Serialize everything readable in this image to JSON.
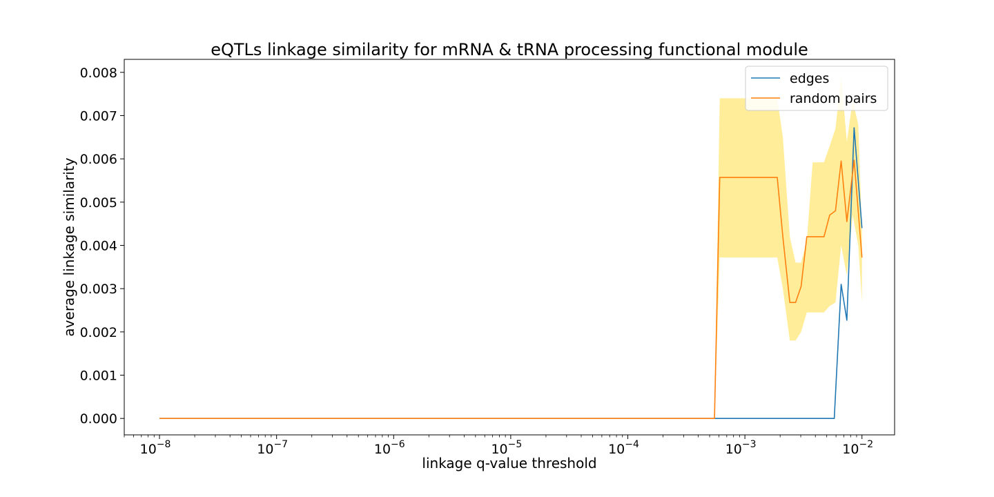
{
  "chart_data": {
    "type": "line",
    "title": "eQTLs linkage similarity for mRNA & tRNA processing functional module",
    "xlabel": "linkage q-value threshold",
    "ylabel": "average linkage similarity",
    "x_scale": "log",
    "xlim": [
      5e-09,
      0.019
    ],
    "ylim": [
      -0.00038,
      0.0083
    ],
    "x_ticks": [
      {
        "value": 1e-08,
        "base": "10",
        "exp": "−8"
      },
      {
        "value": 1e-07,
        "base": "10",
        "exp": "−7"
      },
      {
        "value": 1e-06,
        "base": "10",
        "exp": "−6"
      },
      {
        "value": 1e-05,
        "base": "10",
        "exp": "−5"
      },
      {
        "value": 0.0001,
        "base": "10",
        "exp": "−4"
      },
      {
        "value": 0.001,
        "base": "10",
        "exp": "−3"
      },
      {
        "value": 0.01,
        "base": "10",
        "exp": "−2"
      }
    ],
    "y_ticks": [
      {
        "value": 0.0,
        "label": "0.000"
      },
      {
        "value": 0.001,
        "label": "0.001"
      },
      {
        "value": 0.002,
        "label": "0.002"
      },
      {
        "value": 0.003,
        "label": "0.003"
      },
      {
        "value": 0.004,
        "label": "0.004"
      },
      {
        "value": 0.005,
        "label": "0.005"
      },
      {
        "value": 0.006,
        "label": "0.006"
      },
      {
        "value": 0.007,
        "label": "0.007"
      },
      {
        "value": 0.008,
        "label": "0.008"
      }
    ],
    "legend_position": "top-right",
    "band": {
      "color": "#ffe97f",
      "opacity": 0.8,
      "x": [
        0.00055,
        0.00061,
        0.00189,
        0.00211,
        0.00242,
        0.00271,
        0.00302,
        0.00338,
        0.00379,
        0.00424,
        0.00474,
        0.0053,
        0.00594,
        0.00664,
        0.00743,
        0.00832,
        0.0093,
        0.01
      ],
      "lower": [
        0.0,
        0.00372,
        0.00372,
        0.003,
        0.0018,
        0.0018,
        0.002,
        0.00245,
        0.00245,
        0.00245,
        0.00245,
        0.0026,
        0.00268,
        0.004,
        0.0033,
        0.0047,
        0.004,
        0.0027
      ],
      "upper": [
        0.0,
        0.0074,
        0.0074,
        0.0065,
        0.0042,
        0.0036,
        0.0036,
        0.0041,
        0.00592,
        0.00592,
        0.00592,
        0.0063,
        0.0067,
        0.0079,
        0.0064,
        0.00735,
        0.0068,
        0.0043
      ]
    },
    "series": [
      {
        "name": "edges",
        "color": "#1f77b4",
        "x": [
          1e-08,
          0.00055,
          0.0058,
          0.00664,
          0.00743,
          0.00857,
          0.01
        ],
        "values": [
          0.0,
          0.0,
          0.0,
          0.0031,
          0.00227,
          0.00672,
          0.0044
        ]
      },
      {
        "name": "random pairs",
        "color": "#ff7f0e",
        "x": [
          1e-08,
          0.00055,
          0.00061,
          0.00189,
          0.00211,
          0.00242,
          0.00271,
          0.00302,
          0.00338,
          0.00379,
          0.00424,
          0.00474,
          0.0053,
          0.00594,
          0.00664,
          0.00743,
          0.00857,
          0.01
        ],
        "values": [
          0.0,
          0.0,
          0.00557,
          0.00557,
          0.0042,
          0.00268,
          0.00268,
          0.00305,
          0.0042,
          0.0042,
          0.0042,
          0.0042,
          0.0047,
          0.0048,
          0.00595,
          0.00455,
          0.00597,
          0.00372
        ]
      }
    ]
  }
}
